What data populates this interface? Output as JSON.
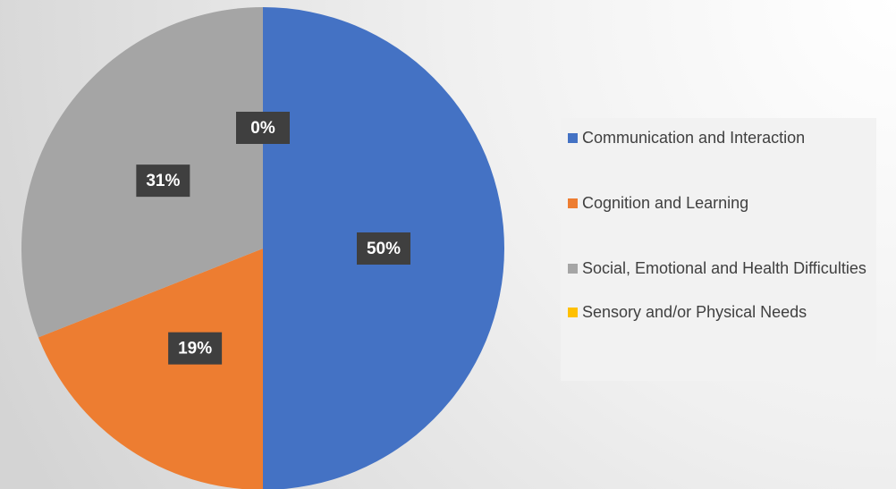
{
  "chart_data": {
    "type": "pie",
    "categories": [
      "Communication and Interaction",
      "Cognition and Learning",
      "Social, Emotional and Health Difficulties",
      "Sensory and/or Physical Needs"
    ],
    "values": [
      50,
      19,
      31,
      0
    ],
    "value_labels": [
      "50%",
      "19%",
      "31%",
      "0%"
    ],
    "colors": [
      "#4472c4",
      "#ed7d31",
      "#a5a5a5",
      "#ffc000"
    ],
    "legend": "right"
  }
}
